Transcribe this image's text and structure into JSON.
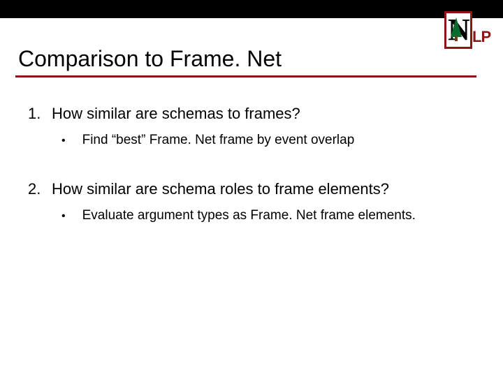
{
  "colors": {
    "accent": "#8c1515",
    "topbar": "#000000",
    "tree": "#0a6b2f",
    "trunk": "#6b3e1a",
    "text": "#000000",
    "background": "#ffffff"
  },
  "logo": {
    "letter": "N",
    "suffix": "LP"
  },
  "title": "Comparison to Frame. Net",
  "items": [
    {
      "number": "1.",
      "text": "How similar are schemas to frames?",
      "sub": {
        "bullet": "•",
        "text": "Find “best” Frame. Net frame by event overlap"
      }
    },
    {
      "number": "2.",
      "text": "How similar are schema roles to frame elements?",
      "sub": {
        "bullet": "•",
        "text": "Evaluate argument types as Frame. Net frame elements."
      }
    }
  ]
}
